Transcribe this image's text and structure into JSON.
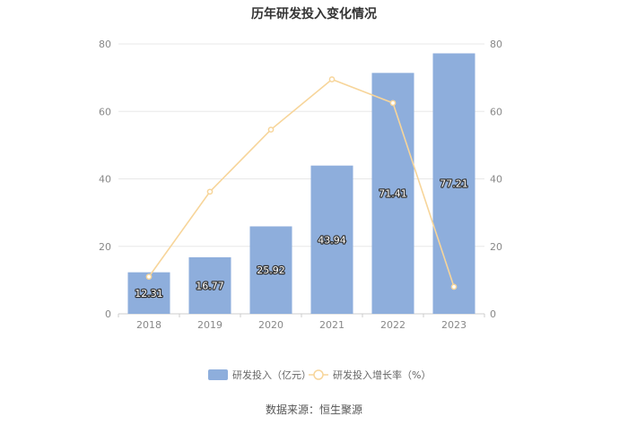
{
  "chart_data": {
    "type": "bar",
    "title": "历年研发投入变化情况",
    "categories": [
      "2018",
      "2019",
      "2020",
      "2021",
      "2022",
      "2023"
    ],
    "series": [
      {
        "name": "研发投入（亿元）",
        "type": "bar",
        "axis": "left",
        "color": "#8eaedc",
        "values": [
          12.31,
          16.77,
          25.92,
          43.94,
          71.41,
          77.21
        ],
        "labels": [
          "12.31",
          "16.77",
          "25.92",
          "43.94",
          "71.41",
          "77.21"
        ]
      },
      {
        "name": "研发投入增长率（%）",
        "type": "line",
        "axis": "right",
        "color": "#f7d59a",
        "values": [
          11,
          36.2,
          54.6,
          69.5,
          62.5,
          8
        ]
      }
    ],
    "y_left": {
      "range": [
        0,
        80
      ],
      "ticks": [
        "0",
        "20",
        "40",
        "60",
        "80"
      ]
    },
    "y_right": {
      "range": [
        0,
        80
      ],
      "ticks": [
        "0",
        "20",
        "40",
        "60",
        "80"
      ]
    },
    "grid": true,
    "legend_position": "bottom"
  },
  "source": "数据来源：恒生聚源"
}
